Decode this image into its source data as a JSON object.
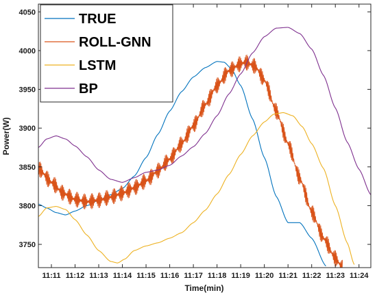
{
  "chart_data": {
    "type": "line",
    "xlabel": "Time(min)",
    "ylabel": "Power(W)",
    "x_tick_labels": [
      "11:11",
      "11:12",
      "11:13",
      "11:14",
      "11:15",
      "11:16",
      "11:17",
      "11:18",
      "11:19",
      "11:20",
      "11:21",
      "11:22",
      "11:23",
      "11:24"
    ],
    "x_tick_values": [
      1,
      2,
      3,
      4,
      5,
      6,
      7,
      8,
      9,
      10,
      11,
      12,
      13,
      14
    ],
    "xlim": [
      0.45,
      14.5
    ],
    "yticks": [
      3750,
      3800,
      3850,
      3900,
      3950,
      4000,
      4050
    ],
    "ylim": [
      3720,
      4060
    ],
    "grid": false,
    "legend_position": "top-left",
    "series": [
      {
        "name": "TRUE",
        "color": "#0072BD",
        "points": [
          [
            0.45,
            3802
          ],
          [
            0.8,
            3797
          ],
          [
            1.2,
            3791
          ],
          [
            1.6,
            3788
          ],
          [
            2.0,
            3793
          ],
          [
            2.5,
            3800
          ],
          [
            3.0,
            3807
          ],
          [
            3.5,
            3814
          ],
          [
            4.0,
            3822
          ],
          [
            4.5,
            3838
          ],
          [
            5.0,
            3862
          ],
          [
            5.5,
            3892
          ],
          [
            6.0,
            3922
          ],
          [
            6.5,
            3947
          ],
          [
            7.0,
            3966
          ],
          [
            7.5,
            3978
          ],
          [
            8.0,
            3986
          ],
          [
            8.3,
            3985
          ],
          [
            8.6,
            3977
          ],
          [
            9.0,
            3955
          ],
          [
            9.5,
            3912
          ],
          [
            10.0,
            3862
          ],
          [
            10.5,
            3812
          ],
          [
            11.0,
            3778
          ],
          [
            11.5,
            3778
          ],
          [
            12.0,
            3758
          ],
          [
            12.6,
            3722
          ]
        ]
      },
      {
        "name": "ROLL-GNN",
        "color": "#D95319",
        "points": [
          [
            0.45,
            3848
          ],
          [
            1.0,
            3830
          ],
          [
            1.5,
            3816
          ],
          [
            2.0,
            3808
          ],
          [
            2.5,
            3805
          ],
          [
            3.0,
            3807
          ],
          [
            3.5,
            3811
          ],
          [
            4.0,
            3816
          ],
          [
            4.5,
            3823
          ],
          [
            5.0,
            3832
          ],
          [
            5.5,
            3845
          ],
          [
            6.0,
            3860
          ],
          [
            6.5,
            3880
          ],
          [
            7.0,
            3903
          ],
          [
            7.5,
            3930
          ],
          [
            8.0,
            3955
          ],
          [
            8.5,
            3974
          ],
          [
            9.0,
            3983
          ],
          [
            9.2,
            3985
          ],
          [
            9.6,
            3980
          ],
          [
            10.0,
            3962
          ],
          [
            10.5,
            3922
          ],
          [
            11.0,
            3880
          ],
          [
            11.5,
            3835
          ],
          [
            12.0,
            3792
          ],
          [
            12.5,
            3758
          ],
          [
            13.0,
            3732
          ],
          [
            13.3,
            3720
          ]
        ],
        "noise_amplitude_w": 10
      },
      {
        "name": "LSTM",
        "color": "#EDB120",
        "points": [
          [
            0.45,
            3786
          ],
          [
            0.8,
            3797
          ],
          [
            1.2,
            3799
          ],
          [
            1.6,
            3795
          ],
          [
            2.0,
            3782
          ],
          [
            2.5,
            3762
          ],
          [
            3.0,
            3742
          ],
          [
            3.5,
            3728
          ],
          [
            3.8,
            3726
          ],
          [
            4.1,
            3731
          ],
          [
            4.5,
            3742
          ],
          [
            5.0,
            3748
          ],
          [
            5.5,
            3752
          ],
          [
            6.0,
            3758
          ],
          [
            6.5,
            3765
          ],
          [
            7.0,
            3778
          ],
          [
            7.5,
            3794
          ],
          [
            8.0,
            3815
          ],
          [
            8.5,
            3840
          ],
          [
            9.0,
            3866
          ],
          [
            9.5,
            3890
          ],
          [
            10.0,
            3908
          ],
          [
            10.4,
            3918
          ],
          [
            10.8,
            3920
          ],
          [
            11.2,
            3916
          ],
          [
            11.6,
            3902
          ],
          [
            12.0,
            3880
          ],
          [
            12.5,
            3848
          ],
          [
            13.0,
            3800
          ],
          [
            13.5,
            3752
          ],
          [
            13.8,
            3724
          ]
        ]
      },
      {
        "name": "BP",
        "color": "#7E2F8E",
        "points": [
          [
            0.45,
            3875
          ],
          [
            0.8,
            3886
          ],
          [
            1.2,
            3890
          ],
          [
            1.6,
            3886
          ],
          [
            2.0,
            3877
          ],
          [
            2.5,
            3863
          ],
          [
            3.0,
            3846
          ],
          [
            3.5,
            3834
          ],
          [
            4.0,
            3830
          ],
          [
            4.5,
            3836
          ],
          [
            5.0,
            3843
          ],
          [
            5.5,
            3846
          ],
          [
            6.0,
            3852
          ],
          [
            6.5,
            3864
          ],
          [
            7.0,
            3876
          ],
          [
            7.5,
            3893
          ],
          [
            8.0,
            3916
          ],
          [
            8.5,
            3944
          ],
          [
            9.0,
            3970
          ],
          [
            9.5,
            3997
          ],
          [
            10.0,
            4018
          ],
          [
            10.5,
            4029
          ],
          [
            11.0,
            4030
          ],
          [
            11.5,
            4022
          ],
          [
            12.0,
            4002
          ],
          [
            12.5,
            3968
          ],
          [
            13.0,
            3926
          ],
          [
            13.5,
            3882
          ],
          [
            14.0,
            3847
          ],
          [
            14.5,
            3814
          ]
        ]
      }
    ]
  }
}
